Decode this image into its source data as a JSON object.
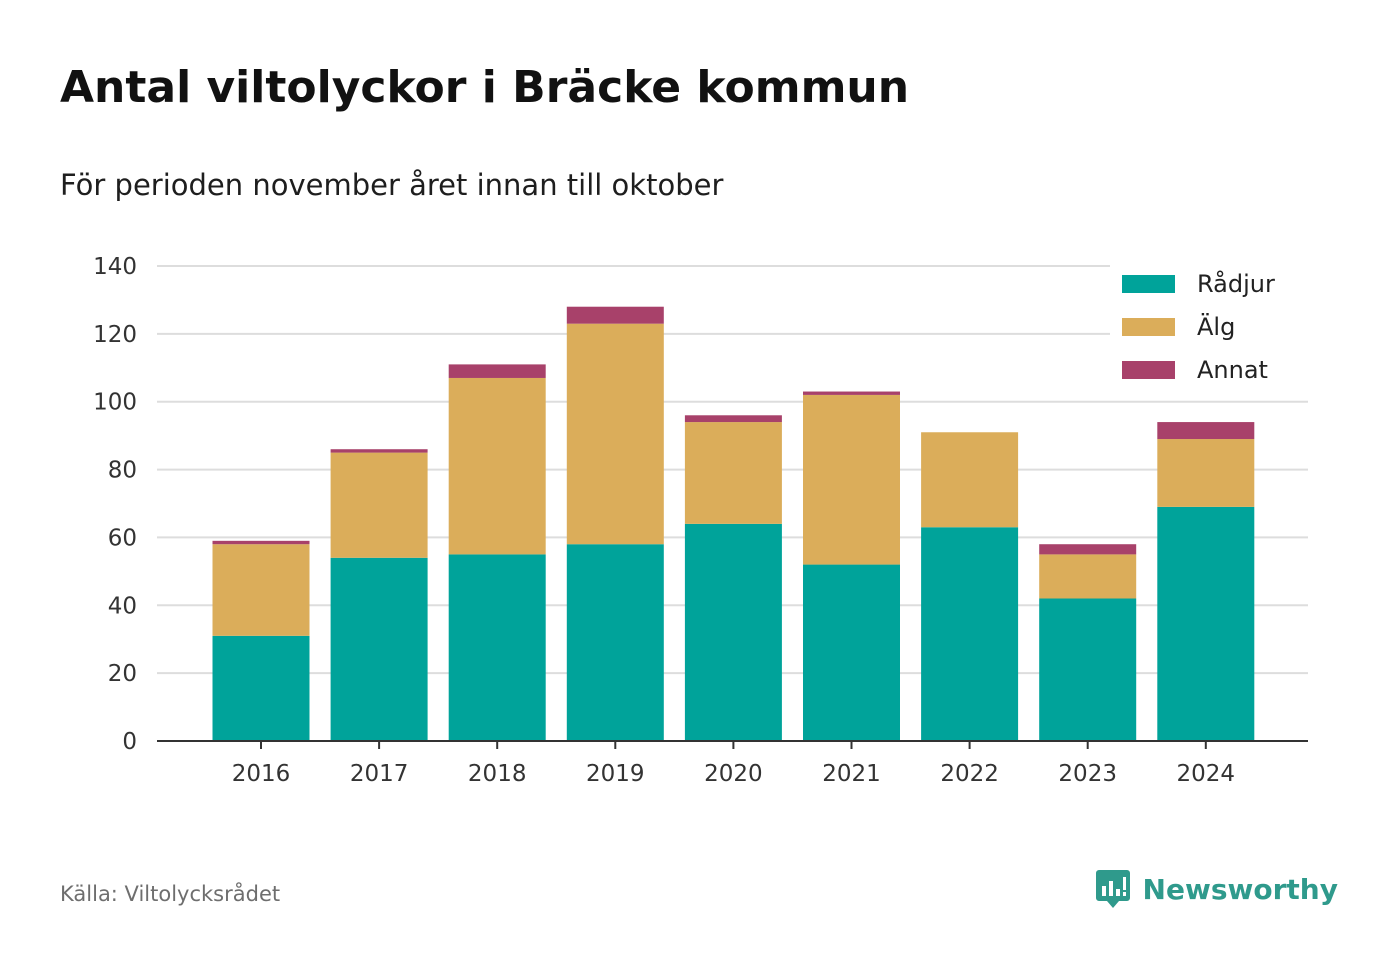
{
  "title": "Antal viltolyckor i Bräcke kommun",
  "subtitle": "För perioden november året innan till oktober",
  "source": "Källa: Viltolycksrådet",
  "brand": {
    "name": "Newsworthy",
    "icon": "newsworthy-logo-icon",
    "color": "#2f9a8c"
  },
  "chart_data": {
    "type": "bar",
    "stacked": true,
    "categories": [
      "2016",
      "2017",
      "2018",
      "2019",
      "2020",
      "2021",
      "2022",
      "2023",
      "2024"
    ],
    "series": [
      {
        "name": "Rådjur",
        "color": "#00a39a",
        "values": [
          31,
          54,
          55,
          58,
          64,
          52,
          63,
          42,
          69
        ]
      },
      {
        "name": "Älg",
        "color": "#dbad5a",
        "values": [
          27,
          31,
          52,
          65,
          30,
          50,
          28,
          13,
          20
        ]
      },
      {
        "name": "Annat",
        "color": "#a8416a",
        "values": [
          1,
          1,
          4,
          5,
          2,
          1,
          0,
          3,
          5
        ]
      }
    ],
    "ylim": [
      0,
      140
    ],
    "yticks": [
      "0",
      "20",
      "40",
      "60",
      "80",
      "100",
      "120",
      "140"
    ],
    "grid": true,
    "legend": "top-right"
  }
}
